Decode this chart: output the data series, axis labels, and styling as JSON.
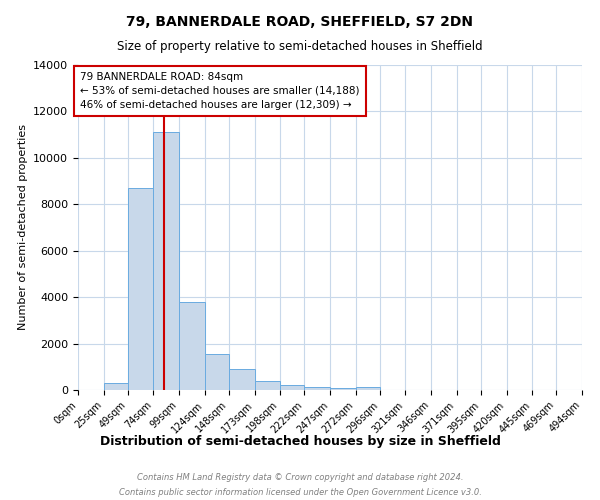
{
  "title": "79, BANNERDALE ROAD, SHEFFIELD, S7 2DN",
  "subtitle": "Size of property relative to semi-detached houses in Sheffield",
  "xlabel": "Distribution of semi-detached houses by size in Sheffield",
  "ylabel": "Number of semi-detached properties",
  "footnote1": "Contains HM Land Registry data © Crown copyright and database right 2024.",
  "footnote2": "Contains public sector information licensed under the Open Government Licence v3.0.",
  "annotation_title": "79 BANNERDALE ROAD: 84sqm",
  "annotation_line1": "← 53% of semi-detached houses are smaller (14,188)",
  "annotation_line2": "46% of semi-detached houses are larger (12,309) →",
  "property_size": 84,
  "bin_edges": [
    0,
    25,
    49,
    74,
    99,
    124,
    148,
    173,
    198,
    222,
    247,
    272,
    296,
    321,
    346,
    371,
    395,
    420,
    445,
    469,
    494
  ],
  "bar_heights": [
    0,
    300,
    8700,
    11100,
    3800,
    1550,
    900,
    400,
    200,
    120,
    80,
    120,
    0,
    0,
    0,
    0,
    0,
    0,
    0,
    0
  ],
  "bar_color": "#c8d8ea",
  "bar_edge_color": "#6aabe0",
  "red_line_color": "#cc0000",
  "annotation_box_color": "#cc0000",
  "grid_color": "#c8d8ea",
  "background_color": "#ffffff",
  "ylim": [
    0,
    14000
  ],
  "yticks": [
    0,
    2000,
    4000,
    6000,
    8000,
    10000,
    12000,
    14000
  ],
  "tick_labels": [
    "0sqm",
    "25sqm",
    "49sqm",
    "74sqm",
    "99sqm",
    "124sqm",
    "148sqm",
    "173sqm",
    "198sqm",
    "222sqm",
    "247sqm",
    "272sqm",
    "296sqm",
    "321sqm",
    "346sqm",
    "371sqm",
    "395sqm",
    "420sqm",
    "445sqm",
    "469sqm",
    "494sqm"
  ]
}
